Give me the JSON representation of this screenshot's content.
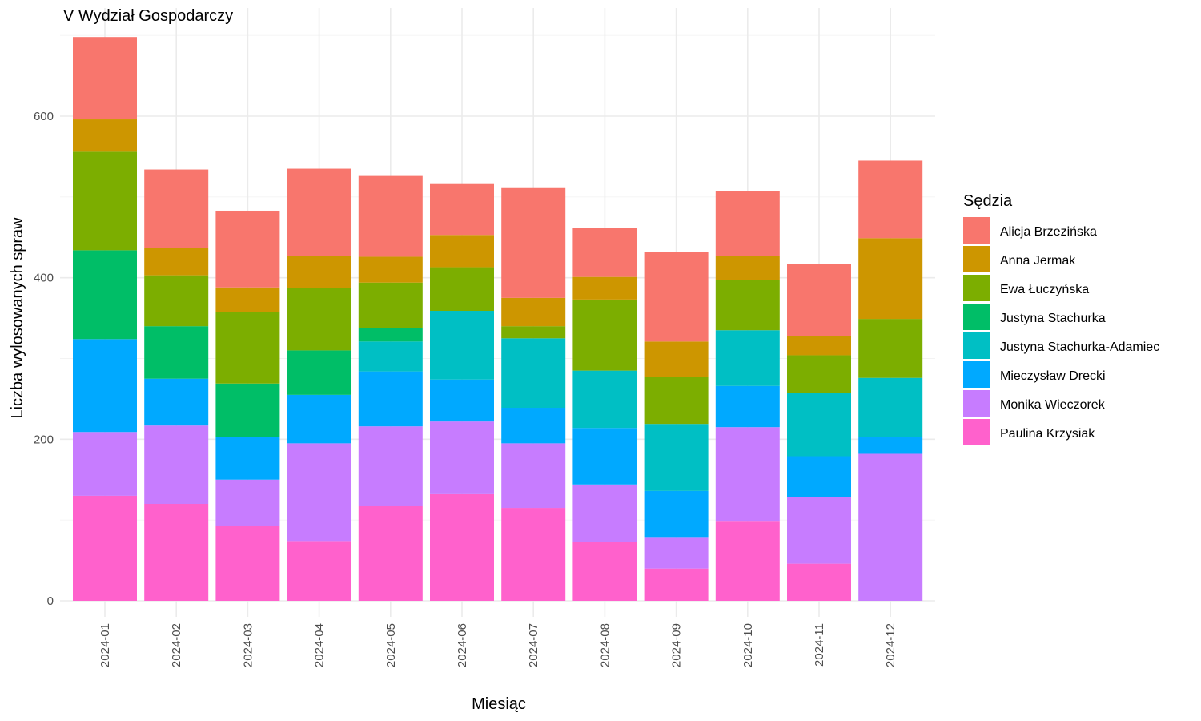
{
  "chart_data": {
    "type": "bar",
    "stacked": true,
    "title": "V Wydział Gospodarczy",
    "xlabel": "Miesiąc",
    "ylabel": "Liczba wylosowanych spraw",
    "ylim": [
      0,
      700
    ],
    "yticks": [
      0,
      200,
      400,
      600
    ],
    "grid": true,
    "legend_title": "Sędzia",
    "legend_position": "right",
    "categories": [
      "2024-01",
      "2024-02",
      "2024-03",
      "2024-04",
      "2024-05",
      "2024-06",
      "2024-07",
      "2024-08",
      "2024-09",
      "2024-10",
      "2024-11",
      "2024-12"
    ],
    "series": [
      {
        "name": "Alicja Brzezińska",
        "color": "#F8766D",
        "values": [
          102,
          97,
          95,
          108,
          100,
          63,
          136,
          61,
          111,
          80,
          89,
          96
        ]
      },
      {
        "name": "Anna Jermak",
        "color": "#CD9600",
        "values": [
          40,
          34,
          30,
          40,
          32,
          40,
          35,
          28,
          44,
          30,
          24,
          100
        ]
      },
      {
        "name": "Ewa Łuczyńska",
        "color": "#7CAE00",
        "values": [
          122,
          63,
          89,
          77,
          56,
          54,
          15,
          88,
          58,
          62,
          47,
          73
        ]
      },
      {
        "name": "Justyna Stachurka",
        "color": "#00BE67",
        "values": [
          110,
          65,
          66,
          55,
          17,
          0,
          0,
          0,
          0,
          0,
          0,
          0
        ]
      },
      {
        "name": "Justyna Stachurka-Adamiec",
        "color": "#00BFC4",
        "values": [
          0,
          0,
          0,
          0,
          37,
          85,
          86,
          71,
          83,
          69,
          78,
          73
        ]
      },
      {
        "name": "Mieczysław Drecki",
        "color": "#00A9FF",
        "values": [
          115,
          58,
          53,
          60,
          68,
          52,
          44,
          70,
          57,
          51,
          51,
          21
        ]
      },
      {
        "name": "Monika Wieczorek",
        "color": "#C77CFF",
        "values": [
          79,
          97,
          57,
          121,
          98,
          90,
          80,
          71,
          39,
          116,
          82,
          182
        ]
      },
      {
        "name": "Paulina Krzysiak",
        "color": "#FF61CC",
        "values": [
          130,
          120,
          93,
          74,
          118,
          132,
          115,
          73,
          40,
          99,
          46,
          0
        ]
      }
    ]
  }
}
